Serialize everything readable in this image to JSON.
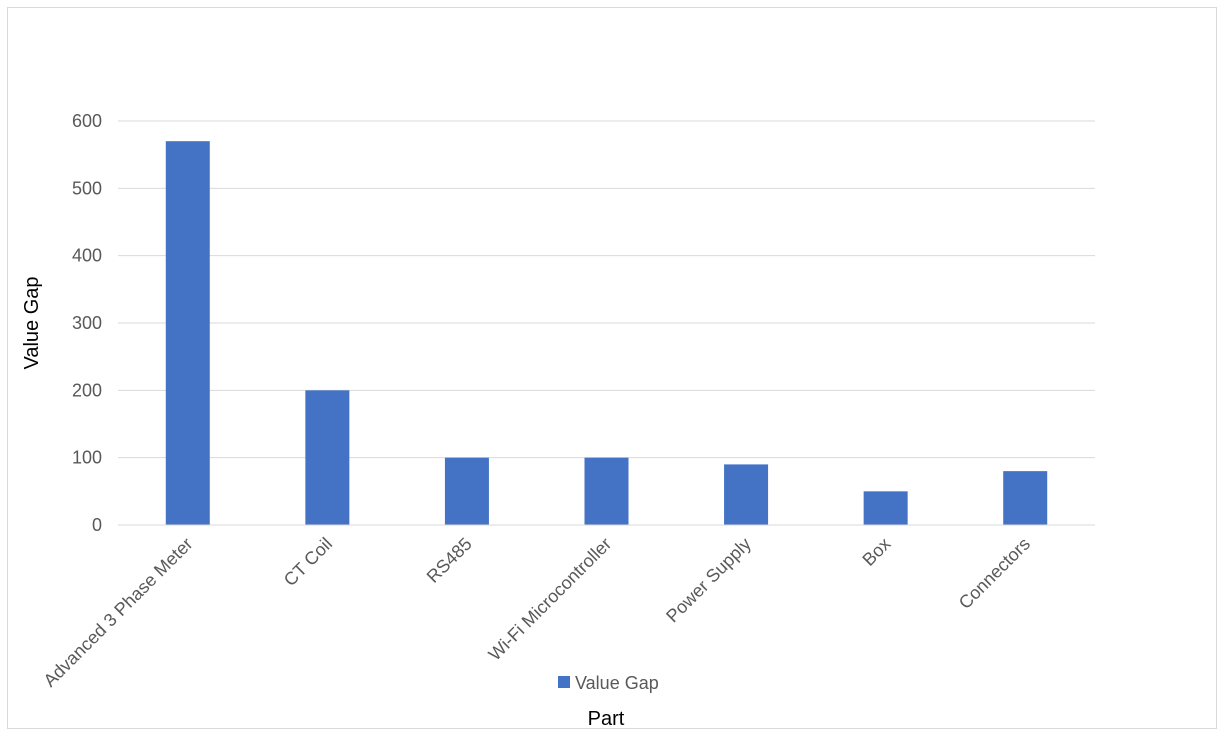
{
  "chart_data": {
    "type": "bar",
    "categories": [
      "Advanced 3 Phase Meter",
      "CT Coil",
      "RS485",
      "Wi-Fi Microcontroller",
      "Power Supply",
      "Box",
      "Connectors"
    ],
    "series": [
      {
        "name": "Value Gap",
        "values": [
          570,
          200,
          100,
          100,
          90,
          50,
          80
        ],
        "color": "#4472c4"
      }
    ],
    "xlabel": "Part",
    "ylabel": "Value Gap",
    "ylim": [
      0,
      600
    ],
    "yticks": [
      0,
      100,
      200,
      300,
      400,
      500,
      600
    ],
    "grid": true,
    "legend_position": "bottom"
  }
}
